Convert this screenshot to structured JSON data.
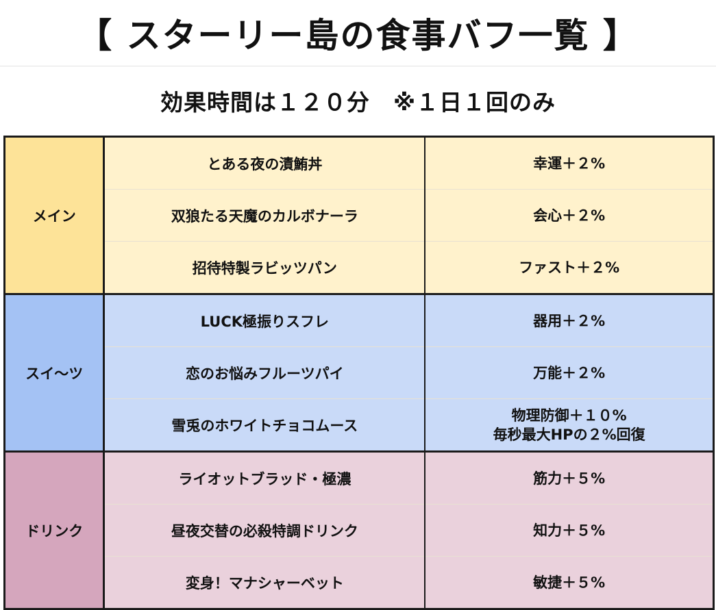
{
  "title": "【 スターリー島の食事バフ一覧 】",
  "subtitle": "効果時間は１２０分　※１日１回のみ",
  "groups": [
    {
      "category": "メイン",
      "cat_color": "#fde398",
      "row_color": "#fff2cc",
      "items": [
        {
          "food": "とある夜の漬鮪丼",
          "effect": [
            "幸運＋２%"
          ]
        },
        {
          "food": "双狼たる天魔のカルボナーラ",
          "effect": [
            "会心＋２%"
          ]
        },
        {
          "food": "招待特製ラビッツパン",
          "effect": [
            "ファスト＋２%"
          ]
        }
      ]
    },
    {
      "category": "スイ〜ツ",
      "cat_color": "#a4c2f4",
      "row_color": "#c9daf8",
      "items": [
        {
          "food": "LUCK極振りスフレ",
          "effect": [
            "器用＋２%"
          ]
        },
        {
          "food": "恋のお悩みフルーツパイ",
          "effect": [
            "万能＋２%"
          ]
        },
        {
          "food": "雪兎のホワイトチョコムース",
          "effect": [
            "物理防御＋１０%",
            "毎秒最大HPの２%回復"
          ]
        }
      ]
    },
    {
      "category": "ドリンク",
      "cat_color": "#d5a6bd",
      "row_color": "#ead1dc",
      "items": [
        {
          "food": "ライオットブラッド・極濃",
          "effect": [
            "筋力＋５%"
          ]
        },
        {
          "food": "昼夜交替の必殺特調ドリンク",
          "effect": [
            "知力＋５%"
          ]
        },
        {
          "food": "変身！マナシャーベット",
          "effect": [
            "敏捷＋５%"
          ]
        }
      ]
    }
  ]
}
